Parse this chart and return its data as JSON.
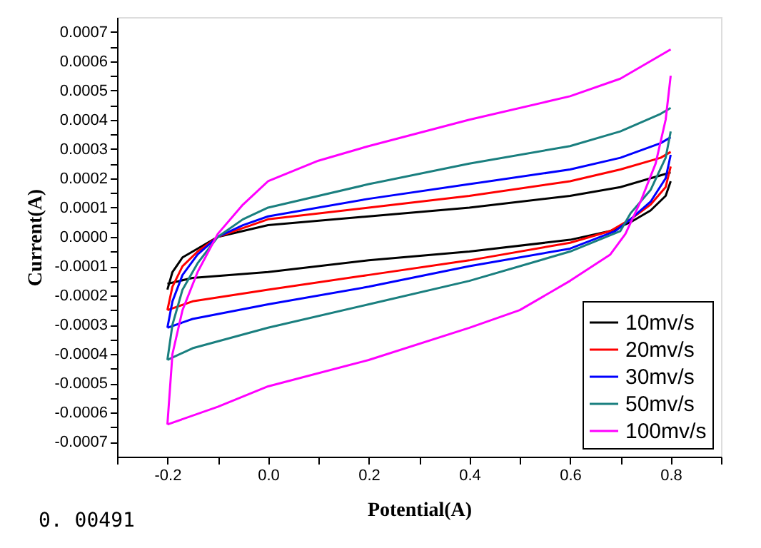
{
  "chart_data": {
    "type": "line",
    "xlabel": "Potential(A)",
    "ylabel": "Current(A)",
    "xlim": [
      -0.3,
      0.9
    ],
    "ylim": [
      -0.00075,
      0.00075
    ],
    "xticks": [
      {
        "value": -0.3,
        "label": null
      },
      {
        "value": -0.2,
        "label": "-0.2"
      },
      {
        "value": -0.1,
        "label": null
      },
      {
        "value": 0,
        "label": "0.0"
      },
      {
        "value": 0.1,
        "label": null
      },
      {
        "value": 0.2,
        "label": "0.2"
      },
      {
        "value": 0.3,
        "label": null
      },
      {
        "value": 0.4,
        "label": "0.4"
      },
      {
        "value": 0.5,
        "label": null
      },
      {
        "value": 0.6,
        "label": "0.6"
      },
      {
        "value": 0.7,
        "label": null
      },
      {
        "value": 0.8,
        "label": "0.8"
      },
      {
        "value": 0.9,
        "label": null
      }
    ],
    "yticks": [
      {
        "value": -0.0007,
        "label": "-0.0007"
      },
      {
        "value": -0.00065,
        "label": null
      },
      {
        "value": -0.0006,
        "label": "-0.0006"
      },
      {
        "value": -0.00055,
        "label": null
      },
      {
        "value": -0.0005,
        "label": "-0.0005"
      },
      {
        "value": -0.00045,
        "label": null
      },
      {
        "value": -0.0004,
        "label": "-0.0004"
      },
      {
        "value": -0.00035,
        "label": null
      },
      {
        "value": -0.0003,
        "label": "-0.0003"
      },
      {
        "value": -0.00025,
        "label": null
      },
      {
        "value": -0.0002,
        "label": "-0.0002"
      },
      {
        "value": -0.00015,
        "label": null
      },
      {
        "value": -0.0001,
        "label": "-0.0001"
      },
      {
        "value": -5e-05,
        "label": null
      },
      {
        "value": 0,
        "label": "0.0000"
      },
      {
        "value": 5e-05,
        "label": null
      },
      {
        "value": 0.0001,
        "label": "0.0001"
      },
      {
        "value": 0.00015,
        "label": null
      },
      {
        "value": 0.0002,
        "label": "0.0002"
      },
      {
        "value": 0.00025,
        "label": null
      },
      {
        "value": 0.0003,
        "label": "0.0003"
      },
      {
        "value": 0.00035,
        "label": null
      },
      {
        "value": 0.0004,
        "label": "0.0004"
      },
      {
        "value": 0.00045,
        "label": null
      },
      {
        "value": 0.0005,
        "label": "0.0005"
      },
      {
        "value": 0.00055,
        "label": null
      },
      {
        "value": 0.0006,
        "label": "0.0006"
      },
      {
        "value": 0.00065,
        "label": null
      },
      {
        "value": 0.0007,
        "label": "0.0007"
      }
    ],
    "grid": false,
    "legend": "bottom right",
    "marker": "none",
    "line_style": "solid",
    "annotations": [
      "0. 00491"
    ],
    "series": [
      {
        "name": "10mv/s",
        "color": "#000000",
        "x": [
          -0.2,
          -0.19,
          -0.17,
          -0.14,
          -0.1,
          -0.05,
          0,
          0.2,
          0.4,
          0.6,
          0.7,
          0.78,
          0.8
        ],
        "values": [
          -0.00018,
          -0.00012,
          -7e-05,
          -4e-05,
          0.0,
          2e-05,
          4e-05,
          7e-05,
          0.0001,
          0.00014,
          0.00017,
          0.00021,
          0.00022
        ]
      },
      {
        "color": "#000000",
        "x": [
          -0.2,
          -0.15,
          0,
          0.2,
          0.4,
          0.6,
          0.68,
          0.72,
          0.76,
          0.79,
          0.8
        ],
        "values": [
          -0.00016,
          -0.00014,
          -0.00012,
          -8e-05,
          -5e-05,
          -1e-05,
          2e-05,
          5e-05,
          9e-05,
          0.00014,
          0.00019
        ]
      },
      {
        "name": "20mv/s",
        "color": "#ff0000",
        "x": [
          -0.2,
          -0.19,
          -0.17,
          -0.14,
          -0.1,
          -0.05,
          0,
          0.2,
          0.4,
          0.6,
          0.7,
          0.78,
          0.8
        ],
        "values": [
          -0.00025,
          -0.00017,
          -0.0001,
          -5e-05,
          0.0,
          3e-05,
          6e-05,
          0.0001,
          0.00014,
          0.00019,
          0.00023,
          0.00027,
          0.00029
        ]
      },
      {
        "color": "#ff0000",
        "x": [
          -0.2,
          -0.15,
          0,
          0.2,
          0.4,
          0.6,
          0.68,
          0.72,
          0.76,
          0.79,
          0.8
        ],
        "values": [
          -0.00025,
          -0.00022,
          -0.00018,
          -0.00013,
          -8e-05,
          -2e-05,
          2e-05,
          6e-05,
          0.00011,
          0.00017,
          0.00024
        ]
      },
      {
        "name": "30mv/s",
        "color": "#0000ff",
        "x": [
          -0.2,
          -0.19,
          -0.17,
          -0.14,
          -0.1,
          -0.05,
          0,
          0.2,
          0.4,
          0.6,
          0.7,
          0.78,
          0.8
        ],
        "values": [
          -0.00031,
          -0.00022,
          -0.00013,
          -6e-05,
          0.0,
          4e-05,
          7e-05,
          0.00013,
          0.00018,
          0.00023,
          0.00027,
          0.00032,
          0.00034
        ]
      },
      {
        "color": "#0000ff",
        "x": [
          -0.2,
          -0.15,
          0,
          0.2,
          0.4,
          0.6,
          0.69,
          0.72,
          0.76,
          0.79,
          0.8
        ],
        "values": [
          -0.00031,
          -0.00028,
          -0.00023,
          -0.00017,
          -0.0001,
          -4e-05,
          2e-05,
          6e-05,
          0.00012,
          0.0002,
          0.00028
        ]
      },
      {
        "name": "50mv/s",
        "color": "#1a7f7f",
        "x": [
          -0.2,
          -0.19,
          -0.17,
          -0.14,
          -0.1,
          -0.05,
          0,
          0.2,
          0.4,
          0.6,
          0.7,
          0.78,
          0.8
        ],
        "values": [
          -0.00042,
          -0.0003,
          -0.00018,
          -9e-05,
          0.0,
          6e-05,
          0.0001,
          0.00018,
          0.00025,
          0.00031,
          0.00036,
          0.00042,
          0.00044
        ]
      },
      {
        "color": "#1a7f7f",
        "x": [
          -0.2,
          -0.15,
          0,
          0.2,
          0.4,
          0.6,
          0.7,
          0.72,
          0.76,
          0.79,
          0.8
        ],
        "values": [
          -0.00042,
          -0.00038,
          -0.00031,
          -0.00023,
          -0.00015,
          -5e-05,
          2e-05,
          8e-05,
          0.00016,
          0.00027,
          0.00036
        ]
      },
      {
        "name": "100mv/s",
        "color": "#ff00ff",
        "x": [
          -0.2,
          -0.19,
          -0.17,
          -0.14,
          -0.1,
          -0.05,
          0,
          0.1,
          0.2,
          0.4,
          0.6,
          0.7,
          0.8
        ],
        "values": [
          -0.00064,
          -0.0004,
          -0.00025,
          -0.00012,
          1e-05,
          0.00011,
          0.00019,
          0.00026,
          0.00031,
          0.0004,
          0.00048,
          0.00054,
          0.00064
        ]
      },
      {
        "color": "#ff00ff",
        "x": [
          -0.2,
          -0.1,
          0,
          0.2,
          0.4,
          0.5,
          0.6,
          0.68,
          0.71,
          0.74,
          0.77,
          0.79,
          0.8
        ],
        "values": [
          -0.00064,
          -0.00058,
          -0.00051,
          -0.00042,
          -0.00031,
          -0.00025,
          -0.00015,
          -6e-05,
          1e-05,
          0.00012,
          0.00025,
          0.0004,
          0.00055
        ]
      }
    ]
  }
}
